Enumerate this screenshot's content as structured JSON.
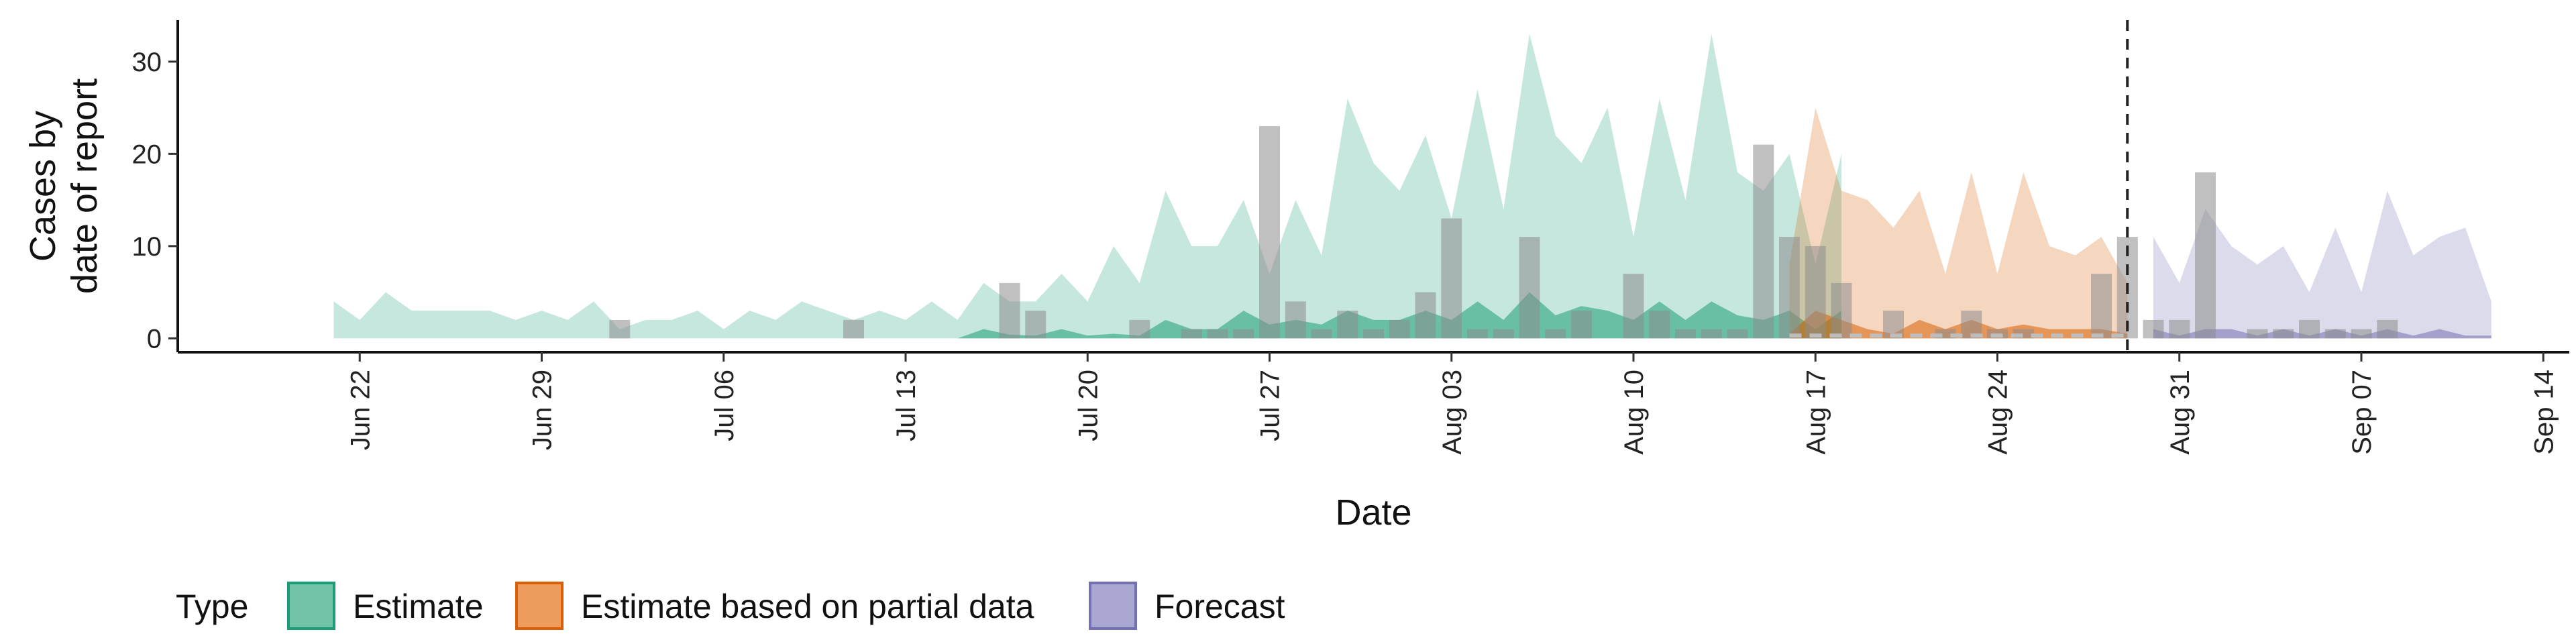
{
  "chart_data": {
    "type": "area",
    "xlabel": "Date",
    "ylabel": [
      "Cases by",
      "date of report"
    ],
    "ylim": [
      -1.5,
      34.5
    ],
    "yticks": [
      0,
      10,
      20,
      30
    ],
    "xlim": [
      "2020-06-15",
      "2020-09-15"
    ],
    "xticks": [
      {
        "date": "2020-06-22",
        "label": "Jun 22"
      },
      {
        "date": "2020-06-29",
        "label": "Jun 29"
      },
      {
        "date": "2020-07-06",
        "label": "Jul 06"
      },
      {
        "date": "2020-07-13",
        "label": "Jul 13"
      },
      {
        "date": "2020-07-20",
        "label": "Jul 20"
      },
      {
        "date": "2020-07-27",
        "label": "Jul 27"
      },
      {
        "date": "2020-08-03",
        "label": "Aug 03"
      },
      {
        "date": "2020-08-10",
        "label": "Aug 10"
      },
      {
        "date": "2020-08-17",
        "label": "Aug 17"
      },
      {
        "date": "2020-08-24",
        "label": "Aug 24"
      },
      {
        "date": "2020-08-31",
        "label": "Aug 31"
      },
      {
        "date": "2020-09-07",
        "label": "Sep 07"
      },
      {
        "date": "2020-09-14",
        "label": "Sep 14"
      }
    ],
    "forecast_date": "2020-08-29",
    "legend": {
      "title": "Type",
      "placement": "bottom-left",
      "entries": [
        {
          "label": "Estimate",
          "fill": "#72c4a8",
          "stroke": "#1b9e77"
        },
        {
          "label": "Estimate based on partial data",
          "fill": "#ef9d5f",
          "stroke": "#d95f02"
        },
        {
          "label": "Forecast",
          "fill": "#aaa7d3",
          "stroke": "#7570b3"
        }
      ]
    },
    "series": [
      {
        "type": "Estimate",
        "color": "#1b9e77",
        "start": "2020-06-21",
        "upper90": [
          4,
          2,
          5,
          3,
          3,
          3,
          3,
          2,
          3,
          2,
          4,
          1,
          2,
          2,
          3,
          1,
          3,
          2,
          4,
          3,
          2,
          3,
          2,
          4,
          2,
          6,
          4,
          4,
          7,
          4,
          10,
          6,
          16,
          10,
          10,
          15,
          7,
          15,
          9,
          26,
          19,
          16,
          22,
          13,
          27,
          14,
          33,
          22,
          19,
          25,
          11,
          26,
          15,
          33,
          18,
          16,
          20,
          8,
          20
        ],
        "upper20": [
          0,
          0,
          0,
          0,
          0,
          0,
          0,
          0,
          0,
          0,
          0,
          0,
          0,
          0,
          0,
          0,
          0,
          0,
          0,
          0,
          0,
          0,
          0,
          0,
          0,
          1,
          0.4,
          0.3,
          1,
          0.3,
          0.5,
          0.3,
          2,
          1,
          1,
          3,
          1.5,
          2,
          1.5,
          3,
          2,
          2,
          3,
          2,
          4,
          2,
          5,
          2.5,
          3.5,
          3,
          2,
          4,
          2,
          4,
          2.5,
          2,
          3,
          1,
          3
        ]
      },
      {
        "type": "Estimate based on partial data",
        "color": "#d95f02",
        "start": "2020-08-16",
        "upper90": [
          8,
          25,
          16,
          15,
          12,
          16,
          7,
          18,
          7,
          18,
          10,
          9,
          11,
          6
        ],
        "upper20": [
          0.5,
          3,
          2,
          1,
          0.5,
          2,
          1,
          2,
          1,
          1.5,
          1,
          1,
          1,
          0.5
        ]
      },
      {
        "type": "Forecast",
        "color": "#7570b3",
        "start": "2020-08-30",
        "upper90": [
          11,
          6,
          14,
          10,
          8,
          10,
          5,
          12,
          5,
          16,
          9,
          11,
          12,
          4
        ],
        "upper20": [
          1,
          0.3,
          1,
          1,
          0.3,
          1,
          0.3,
          1,
          0.3,
          1,
          0.3,
          1,
          0.3,
          0.3
        ]
      }
    ],
    "reported_cases": {
      "start": "2020-06-21",
      "values": [
        0,
        0,
        0,
        0,
        0,
        0,
        0,
        0,
        0,
        0,
        0,
        2,
        0,
        0,
        0,
        0,
        0,
        0,
        0,
        0,
        2,
        0,
        0,
        0,
        0,
        0,
        6,
        3,
        0,
        0,
        0,
        2,
        0,
        1,
        1,
        1,
        23,
        4,
        1,
        3,
        1,
        2,
        5,
        13,
        1,
        1,
        11,
        1,
        3,
        0,
        7,
        3,
        1,
        1,
        1,
        21,
        11,
        10,
        6,
        0,
        3,
        0,
        1,
        3,
        1,
        1,
        0,
        0,
        7,
        11,
        2,
        2,
        18,
        0,
        1,
        1,
        2,
        1,
        1,
        2
      ]
    }
  }
}
